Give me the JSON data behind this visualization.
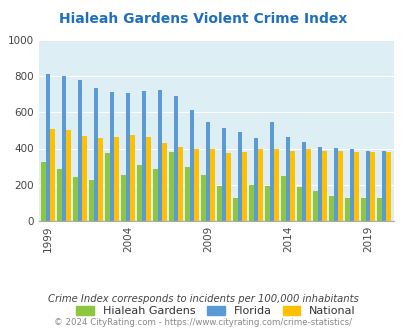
{
  "title": "Hialeah Gardens Violent Crime Index",
  "years": [
    1999,
    2000,
    2001,
    2002,
    2003,
    2004,
    2005,
    2006,
    2007,
    2008,
    2009,
    2010,
    2011,
    2012,
    2013,
    2014,
    2015,
    2016,
    2017,
    2018,
    2019,
    2020
  ],
  "hialeah": [
    325,
    285,
    245,
    225,
    375,
    255,
    310,
    285,
    380,
    300,
    255,
    195,
    130,
    200,
    195,
    250,
    190,
    165,
    140,
    125,
    125,
    125
  ],
  "florida": [
    810,
    800,
    775,
    735,
    710,
    705,
    715,
    720,
    690,
    610,
    545,
    515,
    490,
    460,
    545,
    465,
    435,
    410,
    405,
    395,
    385,
    385
  ],
  "national": [
    510,
    500,
    470,
    460,
    465,
    475,
    465,
    430,
    410,
    395,
    400,
    375,
    380,
    395,
    400,
    385,
    395,
    385,
    385,
    380,
    380,
    380
  ],
  "color_hialeah": "#8dc63f",
  "color_florida": "#5b9bd5",
  "color_national": "#ffc000",
  "bg_color": "#ddeef4",
  "ylabel_ticks": [
    0,
    200,
    400,
    600,
    800,
    1000
  ],
  "xtick_years": [
    1999,
    2004,
    2009,
    2014,
    2019
  ],
  "ylim": [
    0,
    1000
  ],
  "note": "Crime Index corresponds to incidents per 100,000 inhabitants",
  "footer": "© 2024 CityRating.com - https://www.cityrating.com/crime-statistics/",
  "title_color": "#1f6fbf",
  "note_color": "#444444",
  "footer_color": "#888888"
}
